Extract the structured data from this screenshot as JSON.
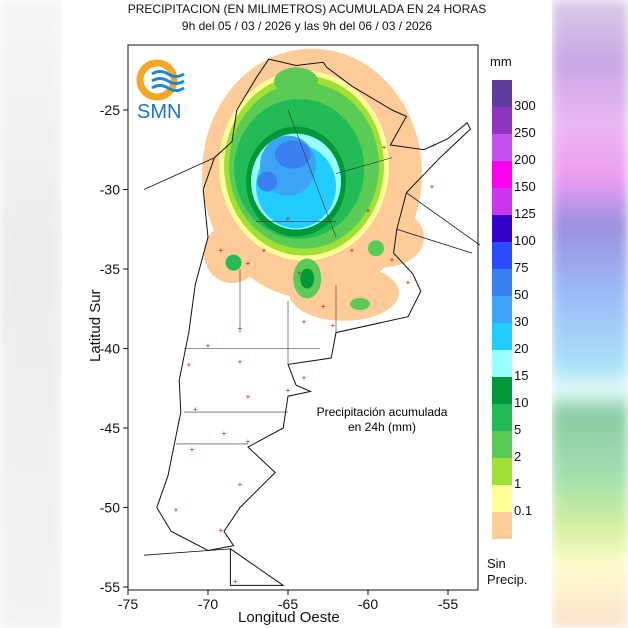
{
  "title": {
    "line1": "PRECIPITACION (EN MILIMETROS) ACUMULADA EN 24 HORAS",
    "line2": "9h del 05 / 03 / 2026  y las 9h del 06 / 03 / 2026"
  },
  "logo": {
    "text": "SMN"
  },
  "axes": {
    "ylabel": "Latitud Sur",
    "xlabel": "Longitud Oeste",
    "xticks": [
      "-75",
      "-70",
      "-65",
      "-60",
      "-55"
    ],
    "yticks": [
      "-25",
      "-30",
      "-35",
      "-40",
      "-45",
      "-50",
      "-55"
    ]
  },
  "annotation": {
    "line1": "Precipitación acumulada",
    "line2": "en 24h (mm)"
  },
  "legend": {
    "unit": "mm",
    "labels": [
      "300",
      "250",
      "200",
      "150",
      "125",
      "100",
      "75",
      "50",
      "30",
      "20",
      "15",
      "10",
      "5",
      "2",
      "1",
      "0.1"
    ],
    "colors": [
      "#5f3b9c",
      "#8f34be",
      "#c452f0",
      "#ff00ee",
      "#cc36ee",
      "#3300cc",
      "#2a4cff",
      "#3a80f0",
      "#3ba4f6",
      "#22ccff",
      "#99ffff",
      "#00993a",
      "#22bb55",
      "#5acb55",
      "#a0e034",
      "#ffff99",
      "#ffcc99"
    ],
    "no_precip_line1": "Sin",
    "no_precip_line2": "Precip."
  }
}
